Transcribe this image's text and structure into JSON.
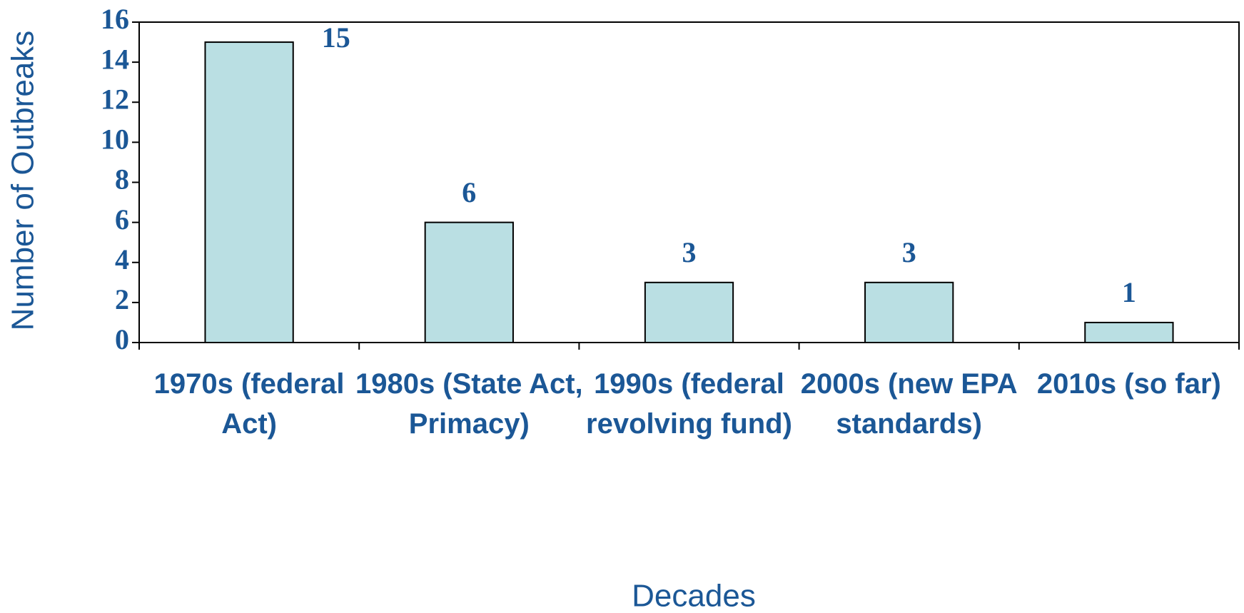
{
  "chart_data": {
    "type": "bar",
    "x_label": "Decades",
    "y_label": "Number of Outbreaks",
    "categories": [
      "1970s (federal Act)",
      "1980s (State Act, Primacy)",
      "1990s (federal revolving fund)",
      "2000s (new EPA standards)",
      "2010s (so far)"
    ],
    "values": [
      15,
      6,
      3,
      3,
      1
    ],
    "color": "#badfe3",
    "ylim": [
      0,
      16
    ],
    "yticks": [
      0,
      2,
      4,
      6,
      8,
      10,
      12,
      14,
      16
    ]
  }
}
